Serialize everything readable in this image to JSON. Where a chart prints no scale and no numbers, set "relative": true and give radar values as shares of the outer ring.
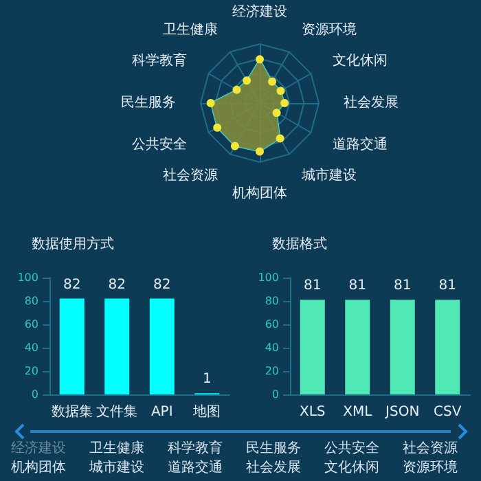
{
  "chart_data": [
    {
      "type": "radar",
      "relative": true,
      "categories": [
        "经济建设",
        "资源环境",
        "文化休闲",
        "社会发展",
        "道路交通",
        "城市建设",
        "机构团体",
        "社会资源",
        "公共安全",
        "民生服务",
        "科学教育",
        "卫生健康"
      ],
      "series": [
        {
          "color": "#7f8a3c",
          "values": [
            0.74,
            0.42,
            0.41,
            0.42,
            0.33,
            0.69,
            0.82,
            0.84,
            0.83,
            0.83,
            0.45,
            0.44
          ]
        }
      ],
      "marker": "circle"
    },
    {
      "type": "bar",
      "title": "数据使用方式",
      "categories": [
        "数据集",
        "文件集",
        "API",
        "地图"
      ],
      "series": [
        {
          "color": "#00ffff",
          "values": [
            82,
            82,
            82,
            1
          ]
        }
      ],
      "ylim": [
        0,
        100
      ],
      "yticks": [
        0,
        20,
        40,
        60,
        80,
        100
      ],
      "data_labels": true
    },
    {
      "type": "bar",
      "title": "数据格式",
      "categories": [
        "XLS",
        "XML",
        "JSON",
        "CSV"
      ],
      "series": [
        {
          "color": "#50e8b4",
          "values": [
            81,
            81,
            81,
            81
          ]
        }
      ],
      "ylim": [
        0,
        100
      ],
      "yticks": [
        0,
        20,
        40,
        60,
        80,
        100
      ],
      "data_labels": true
    },
    {
      "type": "other",
      "annotations": [
        "经济建设",
        "卫生健康",
        "科学教育",
        "民生服务",
        "公共安全",
        "社会资源",
        "机构团体",
        "城市建设",
        "道路交通",
        "社会发展",
        "文化休闲",
        "资源环境"
      ]
    }
  ]
}
